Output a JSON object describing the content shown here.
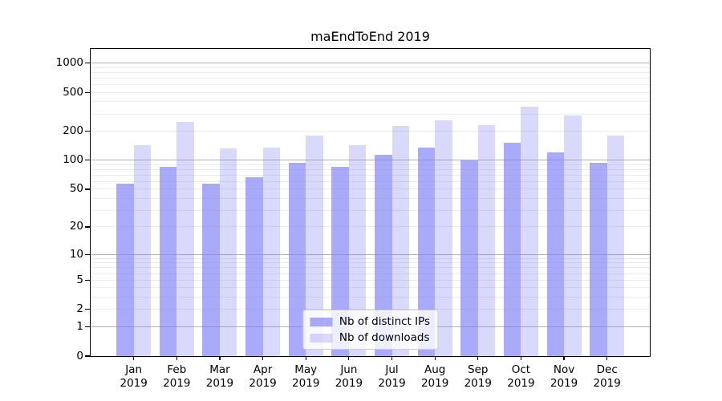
{
  "chart_data": {
    "type": "bar",
    "title": "maEndToEnd 2019",
    "x": {
      "months": [
        "Jan",
        "Feb",
        "Mar",
        "Apr",
        "May",
        "Jun",
        "Jul",
        "Aug",
        "Sep",
        "Oct",
        "Nov",
        "Dec"
      ],
      "year": "2019"
    },
    "series": [
      {
        "name": "Nb of distinct IPs",
        "color": "rgba(128,128,247,0.67)",
        "values": [
          57,
          85,
          57,
          67,
          95,
          85,
          113,
          135,
          100,
          151,
          121,
          95
        ]
      },
      {
        "name": "Nb of downloads",
        "color": "rgba(128,128,242,0.30)",
        "values": [
          144,
          250,
          133,
          134,
          180,
          143,
          226,
          259,
          229,
          358,
          287,
          180
        ]
      }
    ],
    "y_axis": {
      "scale": "log1p",
      "tick_labels": [
        0,
        1,
        2,
        5,
        10,
        20,
        50,
        100,
        200,
        500,
        1000
      ],
      "major_gridlines": [
        1,
        10,
        100,
        1000
      ],
      "minor_gridline_decades": [
        1,
        10,
        100
      ],
      "max_value": 1392
    },
    "legend": {
      "location": "lower center"
    },
    "colors": {
      "major_grid": "#b2b2b2",
      "minor_grid": "#ebebeb",
      "spine": "#000000",
      "background": "#ffffff"
    },
    "grid": "on"
  }
}
